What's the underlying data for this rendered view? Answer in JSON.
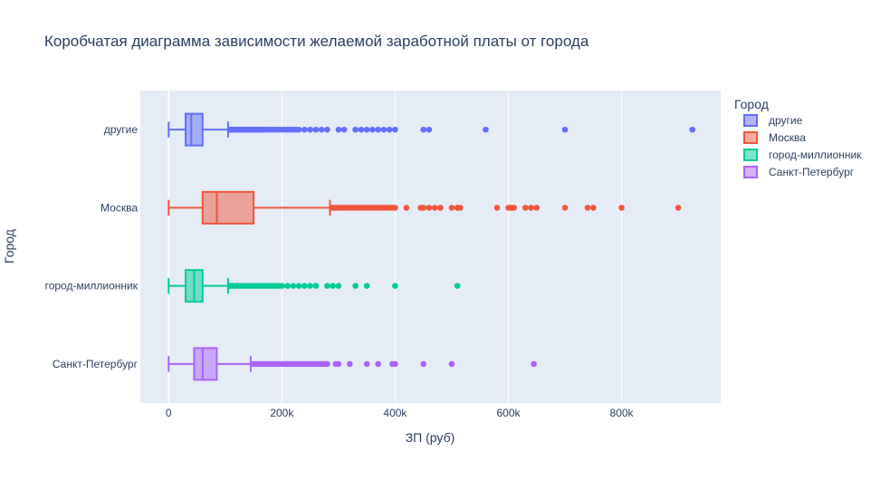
{
  "chart_data": {
    "type": "box",
    "orientation": "horizontal",
    "title": "Коробчатая диаграмма зависимости желаемой заработной платы от города",
    "xlabel": "ЗП (руб)",
    "ylabel": "Город",
    "xlim": [
      -50000,
      975000
    ],
    "x_ticks": [
      0,
      200000,
      400000,
      600000,
      800000
    ],
    "x_tick_labels": [
      "0",
      "200k",
      "400k",
      "600k",
      "800k"
    ],
    "grid": true,
    "legend": {
      "title": "Город",
      "placement": "top-right"
    },
    "colors": {
      "plot_bg": "#E5ECF6",
      "grid": "#ffffff",
      "text": "#2a3f5f"
    },
    "series": [
      {
        "name": "другие",
        "color": "#636EFA",
        "min": 0,
        "q1": 30000,
        "median": 40000,
        "q3": 60000,
        "max": 105000,
        "outliers": [
          108000,
          110000,
          112000,
          115000,
          118000,
          120000,
          122000,
          125000,
          128000,
          130000,
          133000,
          135000,
          138000,
          140000,
          143000,
          145000,
          148000,
          150000,
          153000,
          155000,
          158000,
          160000,
          163000,
          165000,
          168000,
          170000,
          175000,
          180000,
          185000,
          190000,
          195000,
          200000,
          205000,
          210000,
          215000,
          220000,
          225000,
          230000,
          240000,
          250000,
          260000,
          270000,
          280000,
          300000,
          310000,
          330000,
          340000,
          350000,
          360000,
          370000,
          380000,
          390000,
          400000,
          450000,
          460000,
          560000,
          700000,
          925000
        ]
      },
      {
        "name": "Москва",
        "color": "#EF553B",
        "min": 0,
        "q1": 60000,
        "median": 85000,
        "q3": 150000,
        "max": 285000,
        "outliers": [
          288000,
          292000,
          296000,
          300000,
          305000,
          310000,
          315000,
          320000,
          325000,
          330000,
          335000,
          340000,
          345000,
          350000,
          355000,
          360000,
          365000,
          370000,
          375000,
          380000,
          385000,
          390000,
          395000,
          400000,
          420000,
          445000,
          450000,
          460000,
          470000,
          480000,
          500000,
          510000,
          515000,
          580000,
          600000,
          605000,
          610000,
          630000,
          640000,
          650000,
          700000,
          740000,
          750000,
          800000,
          900000
        ]
      },
      {
        "name": "город-миллионник",
        "color": "#00CC96",
        "min": 0,
        "q1": 30000,
        "median": 45000,
        "q3": 60000,
        "max": 105000,
        "outliers": [
          108000,
          112000,
          116000,
          120000,
          125000,
          130000,
          135000,
          140000,
          145000,
          150000,
          155000,
          160000,
          165000,
          170000,
          175000,
          180000,
          185000,
          190000,
          195000,
          200000,
          210000,
          220000,
          230000,
          240000,
          250000,
          260000,
          280000,
          290000,
          300000,
          330000,
          350000,
          400000,
          510000
        ]
      },
      {
        "name": "Санкт-Петербург",
        "color": "#AB63FA",
        "min": 0,
        "q1": 45000,
        "median": 60000,
        "q3": 85000,
        "max": 145000,
        "outliers": [
          150000,
          155000,
          160000,
          165000,
          170000,
          175000,
          180000,
          185000,
          190000,
          195000,
          200000,
          205000,
          210000,
          215000,
          220000,
          225000,
          230000,
          235000,
          240000,
          245000,
          250000,
          255000,
          260000,
          265000,
          270000,
          275000,
          280000,
          295000,
          300000,
          320000,
          350000,
          370000,
          395000,
          400000,
          450000,
          500000,
          645000
        ]
      }
    ]
  }
}
